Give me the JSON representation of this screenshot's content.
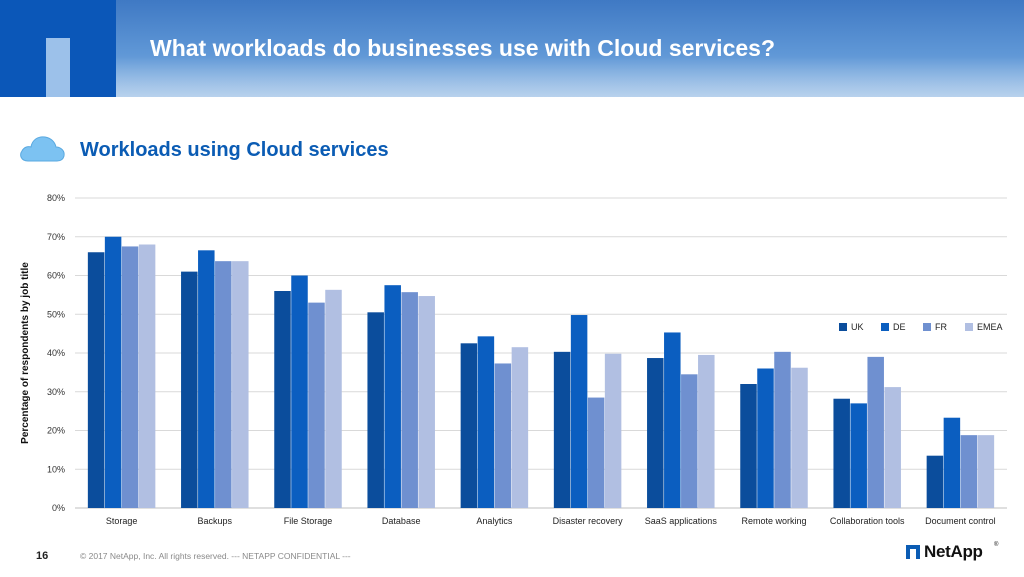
{
  "header": {
    "title": "What workloads do businesses use with Cloud services?"
  },
  "section": {
    "subtitle": "Workloads using Cloud services",
    "icon": "cloud-icon"
  },
  "chart_data": {
    "type": "bar",
    "title": "",
    "xlabel": "",
    "ylabel": "Percentage of respondents by job title",
    "ylim": [
      0,
      80
    ],
    "yticks": [
      "0%",
      "10%",
      "20%",
      "30%",
      "40%",
      "50%",
      "60%",
      "70%",
      "80%"
    ],
    "grid": true,
    "legend_position": "right",
    "categories": [
      "Storage",
      "Backups",
      "File Storage",
      "Database",
      "Analytics",
      "Disaster recovery",
      "SaaS applications",
      "Remote working",
      "Collaboration tools",
      "Document control"
    ],
    "series": [
      {
        "name": "UK",
        "color": "#0b4d9c",
        "values": [
          66,
          61,
          56,
          50.5,
          42.5,
          40.3,
          38.7,
          32,
          28.2,
          13.5
        ]
      },
      {
        "name": "DE",
        "color": "#0b5ec0",
        "values": [
          70,
          66.5,
          60,
          57.5,
          44.3,
          49.8,
          45.3,
          36,
          27,
          23.3
        ]
      },
      {
        "name": "FR",
        "color": "#6f90d0",
        "values": [
          67.5,
          63.7,
          53,
          55.7,
          37.3,
          28.5,
          34.5,
          40.3,
          39,
          18.8
        ]
      },
      {
        "name": "EMEA",
        "color": "#b1bfe2",
        "values": [
          68,
          63.7,
          56.3,
          54.7,
          41.5,
          39.8,
          39.5,
          36.2,
          31.2,
          18.8
        ]
      }
    ]
  },
  "footer": {
    "page_number": "16",
    "copyright": "© 2017 NetApp, Inc. All rights reserved. --- NETAPP CONFIDENTIAL ---",
    "logo_text": "NetApp",
    "logo_mark": "®"
  }
}
